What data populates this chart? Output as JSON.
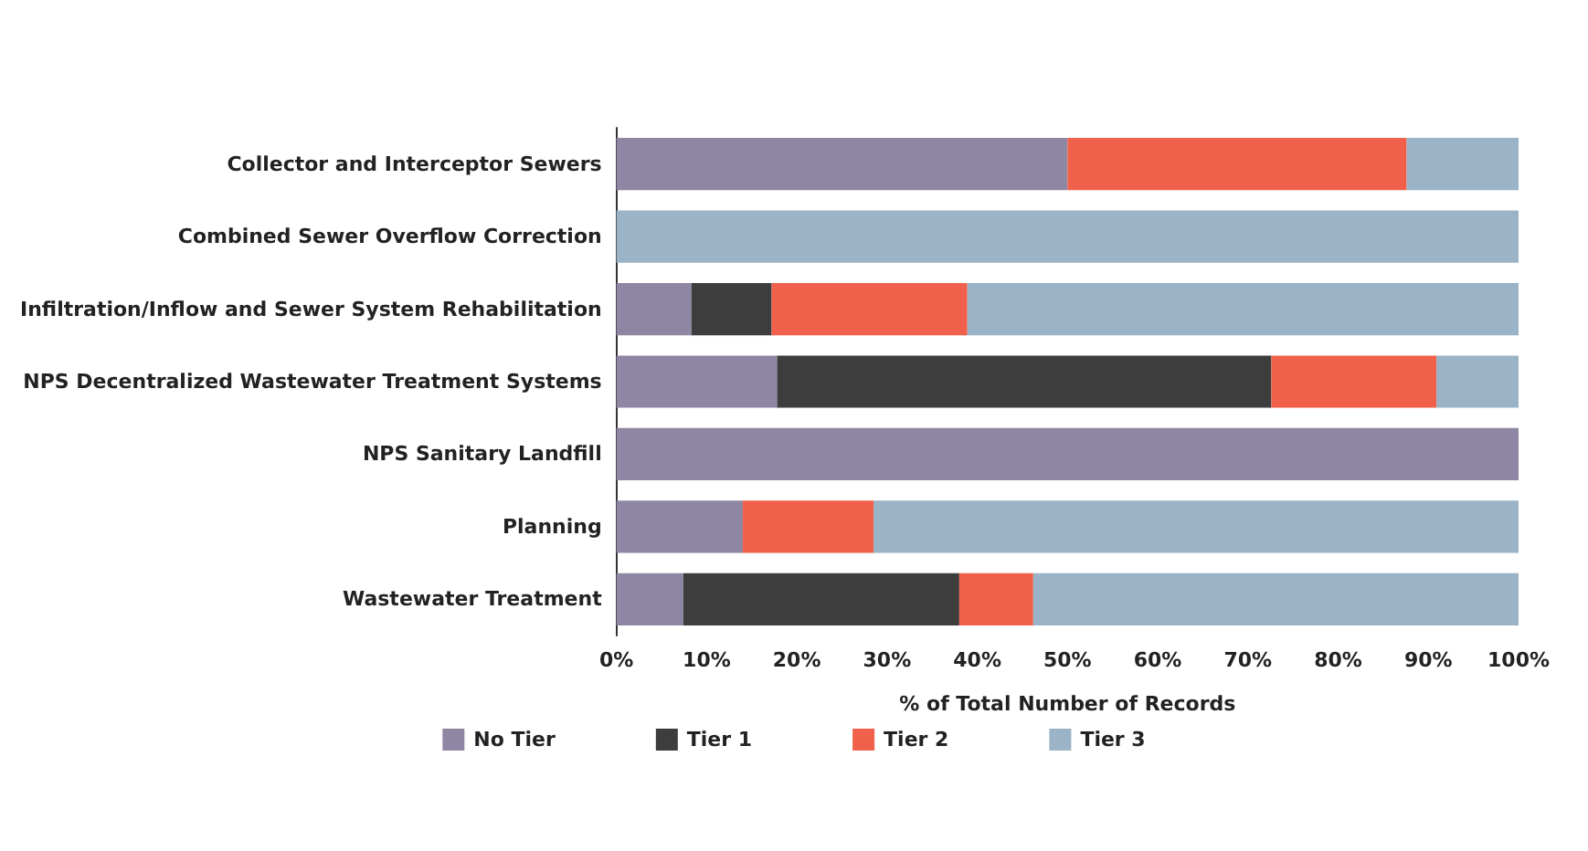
{
  "chart_data": {
    "type": "bar",
    "orientation": "horizontal",
    "stacked": true,
    "categories": [
      "Collector and Interceptor Sewers",
      "Combined Sewer Overflow Correction",
      "Infiltration/Inflow and Sewer System Rehabilitation",
      "NPS Decentralized Wastewater Treatment Systems",
      "NPS Sanitary Landfill",
      "Planning",
      "Wastewater Treatment"
    ],
    "series": [
      {
        "name": "No Tier",
        "color": "#8e86a3",
        "values": [
          50,
          0,
          8.3,
          17.8,
          100,
          14,
          7.4
        ]
      },
      {
        "name": "Tier 1",
        "color": "#3d3d3d",
        "values": [
          0,
          0,
          8.9,
          54.8,
          0,
          0,
          30.6
        ]
      },
      {
        "name": "Tier 2",
        "color": "#f0604b",
        "values": [
          37.6,
          0,
          21.7,
          18.3,
          0,
          14.5,
          8.2
        ]
      },
      {
        "name": "Tier 3",
        "color": "#9ab3c6",
        "values": [
          12.4,
          100,
          61.1,
          9.1,
          0,
          71.5,
          53.8
        ]
      }
    ],
    "xlabel": "% of Total Number of Records",
    "xlim": [
      0,
      100
    ],
    "xticks": [
      {
        "value": 0,
        "label": "0%"
      },
      {
        "value": 10,
        "label": "10%"
      },
      {
        "value": 20,
        "label": "20%"
      },
      {
        "value": 30,
        "label": "30%"
      },
      {
        "value": 40,
        "label": "40%"
      },
      {
        "value": 50,
        "label": "50%"
      },
      {
        "value": 60,
        "label": "60%"
      },
      {
        "value": 70,
        "label": "70%"
      },
      {
        "value": 80,
        "label": "80%"
      },
      {
        "value": 90,
        "label": "90%"
      },
      {
        "value": 100,
        "label": "100%"
      }
    ],
    "grid": false,
    "legend": "bottom"
  }
}
